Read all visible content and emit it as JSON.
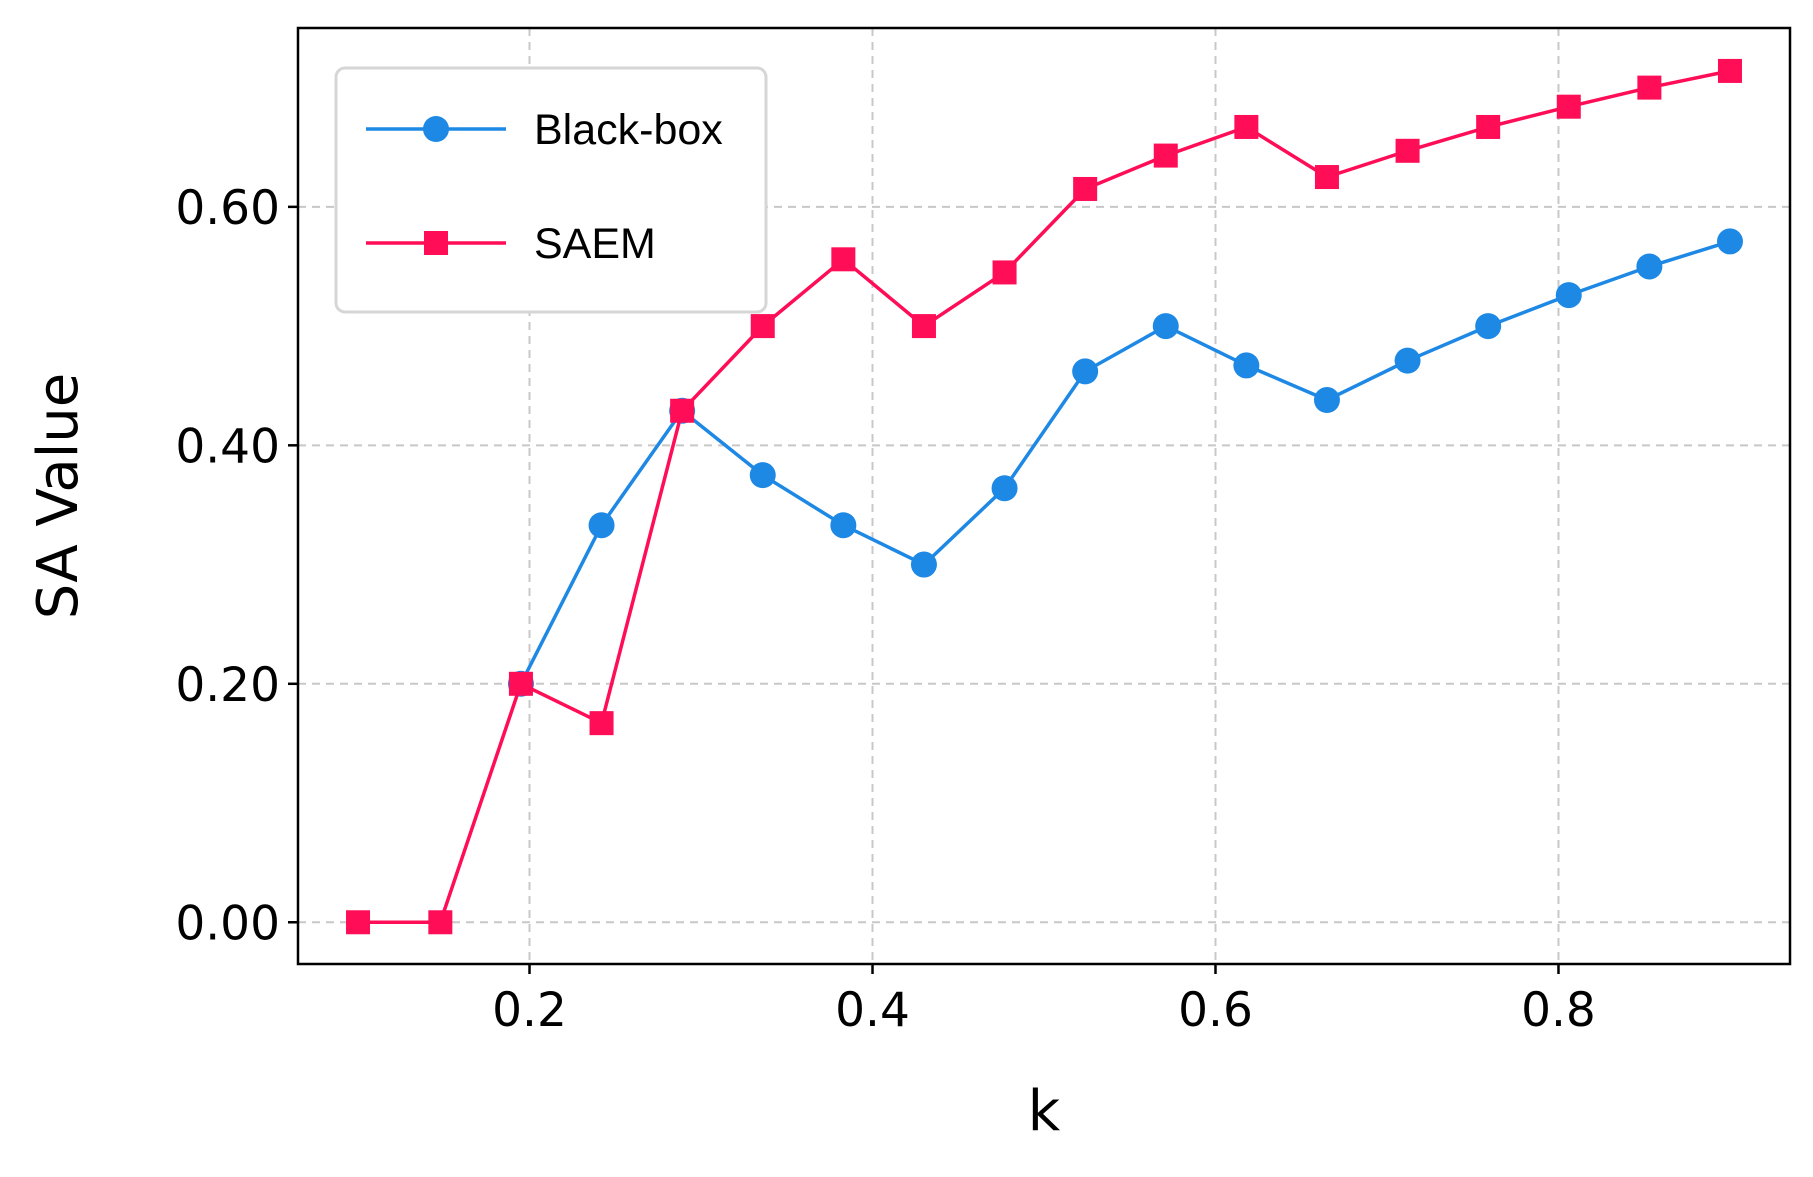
{
  "chart_data": {
    "type": "line",
    "xlabel": "k",
    "ylabel": "SA Value",
    "xlim": [
      0.065,
      0.935
    ],
    "ylim": [
      -0.035,
      0.75
    ],
    "xticks": [
      0.2,
      0.4,
      0.6,
      0.8
    ],
    "xtick_labels": [
      "0.2",
      "0.4",
      "0.6",
      "0.8"
    ],
    "yticks": [
      0.0,
      0.2,
      0.4,
      0.6
    ],
    "ytick_labels": [
      "0.00",
      "0.20",
      "0.40",
      "0.60"
    ],
    "grid": true,
    "legend_position": "top-left",
    "x": [
      0.1,
      0.148,
      0.195,
      0.242,
      0.289,
      0.336,
      0.383,
      0.43,
      0.477,
      0.524,
      0.571,
      0.618,
      0.665,
      0.712,
      0.759,
      0.806,
      0.853,
      0.9
    ],
    "series": [
      {
        "name": "Black-box",
        "color": "#1e88e5",
        "marker": "circle",
        "x": [
          0.195,
          0.242,
          0.289,
          0.336,
          0.383,
          0.43,
          0.477,
          0.524,
          0.571,
          0.618,
          0.665,
          0.712,
          0.759,
          0.806,
          0.853,
          0.9
        ],
        "values": [
          0.2,
          0.333,
          0.429,
          0.375,
          0.333,
          0.3,
          0.364,
          0.462,
          0.5,
          0.467,
          0.438,
          0.471,
          0.5,
          0.526,
          0.55,
          0.571
        ]
      },
      {
        "name": "SAEM",
        "color": "#ff0d57",
        "marker": "square",
        "x": [
          0.1,
          0.148,
          0.195,
          0.242,
          0.289,
          0.336,
          0.383,
          0.43,
          0.477,
          0.524,
          0.571,
          0.618,
          0.665,
          0.712,
          0.759,
          0.806,
          0.853,
          0.9
        ],
        "values": [
          0.0,
          0.0,
          0.2,
          0.167,
          0.429,
          0.5,
          0.556,
          0.5,
          0.545,
          0.615,
          0.643,
          0.667,
          0.625,
          0.647,
          0.667,
          0.684,
          0.7,
          0.714
        ]
      }
    ]
  }
}
